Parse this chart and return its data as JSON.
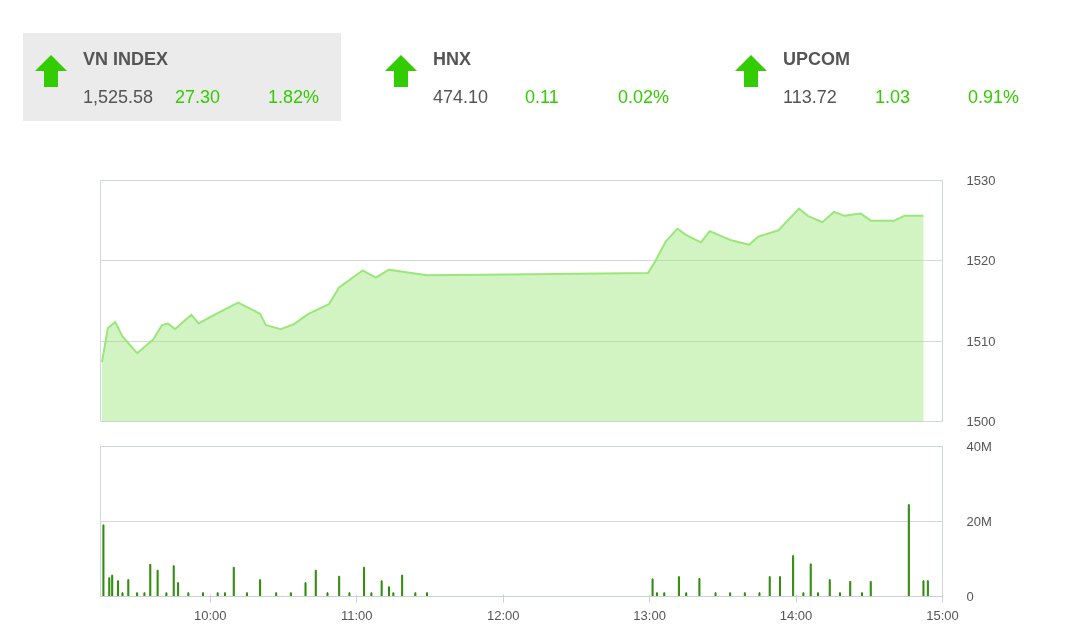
{
  "chart_data": [
    {
      "type": "other",
      "title": "VN INDEX",
      "annotations": [
        "1,525.58",
        "27.30",
        "1.82%"
      ]
    },
    {
      "type": "other",
      "title": "HNX",
      "annotations": [
        "474.10",
        "0.11",
        "0.02%"
      ]
    },
    {
      "type": "other",
      "title": "UPCOM",
      "annotations": [
        "113.72",
        "1.03",
        "0.91%"
      ]
    },
    {
      "type": "area",
      "xlim": [
        9.25,
        15
      ],
      "ylim": [
        1500,
        1530
      ],
      "yticks": [
        1500,
        1510,
        1520,
        1530
      ],
      "grid": "y",
      "tick_labels": "y",
      "series": [
        {
          "color": "#9be67a",
          "x": [
            9.26,
            9.3,
            9.35,
            9.4,
            9.5,
            9.61,
            9.67,
            9.71,
            9.76,
            9.87,
            9.92,
            10.04,
            10.19,
            10.34,
            10.38,
            10.48,
            10.57,
            10.67,
            10.81,
            10.88,
            11.04,
            11.13,
            11.22,
            11.48,
            12.99,
            13.04,
            13.11,
            13.19,
            13.25,
            13.35,
            13.41,
            13.55,
            13.68,
            13.74,
            13.88,
            14.02,
            14.08,
            14.18,
            14.26,
            14.33,
            14.44,
            14.51,
            14.67,
            14.74,
            14.87
          ],
          "values": [
            1507.4,
            1511.6,
            1512.4,
            1510.6,
            1508.5,
            1510.2,
            1512.0,
            1512.2,
            1511.5,
            1513.3,
            1512.2,
            1513.4,
            1514.8,
            1513.4,
            1512.0,
            1511.5,
            1512.1,
            1513.4,
            1514.6,
            1516.7,
            1518.8,
            1517.9,
            1518.9,
            1518.2,
            1518.5,
            1520.0,
            1522.4,
            1524.0,
            1523.2,
            1522.3,
            1523.7,
            1522.6,
            1522.0,
            1523.0,
            1523.8,
            1526.5,
            1525.6,
            1524.8,
            1526.1,
            1525.6,
            1525.9,
            1525.0,
            1525.0,
            1525.6,
            1525.6
          ]
        }
      ]
    },
    {
      "type": "bar",
      "xlim": [
        9.25,
        15
      ],
      "xticks": [
        {
          "value": 10,
          "label": "10:00"
        },
        {
          "value": 11,
          "label": "11:00"
        },
        {
          "value": 12,
          "label": "12:00"
        },
        {
          "value": 13,
          "label": "13:00"
        },
        {
          "value": 14,
          "label": "14:00"
        },
        {
          "value": 15,
          "label": "15:00"
        }
      ],
      "ylim": [
        0,
        40
      ],
      "yticks": [
        0,
        {
          "value": 20,
          "label": "20M"
        },
        {
          "value": 40,
          "label": "40M"
        }
      ],
      "grid": "y",
      "series": [
        {
          "color": "#2e8b0a",
          "x": [
            9.27,
            9.31,
            9.33,
            9.37,
            9.4,
            9.44,
            9.5,
            9.55,
            9.59,
            9.64,
            9.7,
            9.75,
            9.78,
            9.85,
            9.95,
            10.05,
            10.1,
            10.16,
            10.25,
            10.34,
            10.45,
            10.55,
            10.65,
            10.72,
            10.8,
            10.88,
            10.95,
            11.05,
            11.1,
            11.17,
            11.22,
            11.25,
            11.31,
            11.4,
            11.48,
            13.02,
            13.05,
            13.1,
            13.2,
            13.25,
            13.34,
            13.45,
            13.55,
            13.65,
            13.75,
            13.82,
            13.89,
            13.98,
            14.05,
            14.1,
            14.15,
            14.23,
            14.3,
            14.37,
            14.45,
            14.51,
            14.77,
            14.87,
            14.9
          ],
          "values": [
            19.1,
            5.0,
            5.7,
            4.2,
            1,
            4.5,
            1,
            1,
            8.6,
            7.0,
            1,
            8.2,
            3.7,
            1,
            1,
            1,
            1,
            7.8,
            1,
            4.5,
            1,
            1,
            3.7,
            7.0,
            1,
            5.4,
            1,
            7.8,
            1,
            4.2,
            2.6,
            1,
            5.7,
            1,
            1,
            4.7,
            1,
            1,
            5.3,
            1,
            4.8,
            1,
            1,
            1,
            1,
            5.3,
            5.3,
            10.9,
            1,
            8.7,
            1,
            4.5,
            1,
            4.0,
            1,
            4.0,
            24.5,
            4.2,
            4.2
          ]
        }
      ]
    }
  ]
}
